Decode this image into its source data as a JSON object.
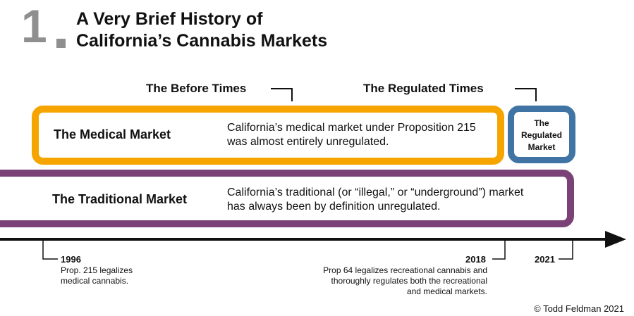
{
  "header": {
    "number": "1",
    "title_line1": "A Very Brief History of",
    "title_line2": "California’s Cannabis Markets"
  },
  "eras": {
    "before": "The Before Times",
    "regulated": "The Regulated Times"
  },
  "markets": {
    "medical": {
      "label": "The Medical Market",
      "description": "California’s medical market under Proposition 215 was almost entirely unregulated."
    },
    "regulated": {
      "label_line1": "The",
      "label_line2": "Regulated",
      "label_line3": "Market"
    },
    "traditional": {
      "label": "The Traditional Market",
      "description": "California’s traditional (or “illegal,” or “underground”) market has always been by definition unregulated."
    }
  },
  "timeline": {
    "events": [
      {
        "year": "1996",
        "note": "Prop. 215 legalizes medical cannabis."
      },
      {
        "year": "2018",
        "note": "Prop 64 legalizes recreational cannabis and thoroughly regulates both the recreational and medical markets."
      },
      {
        "year": "2021",
        "note": ""
      }
    ]
  },
  "colors": {
    "medical": "#f5a400",
    "regulated": "#3f74a4",
    "traditional": "#7b4277",
    "number": "#8f8f8f"
  },
  "footer": {
    "copyright": "© Todd Feldman 2021"
  }
}
